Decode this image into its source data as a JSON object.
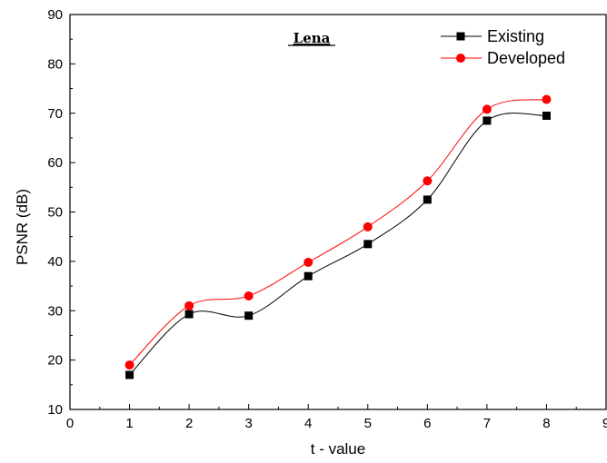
{
  "chart_data": {
    "type": "line",
    "title": "Lena",
    "xlabel": "t - value",
    "ylabel": "PSNR (dB)",
    "xlim": [
      0,
      9
    ],
    "ylim": [
      10,
      90
    ],
    "xticks": [
      "0",
      "1",
      "2",
      "3",
      "4",
      "5",
      "6",
      "7",
      "8",
      "9"
    ],
    "yticks": [
      "10",
      "20",
      "30",
      "40",
      "50",
      "60",
      "70",
      "80",
      "90"
    ],
    "x": [
      1,
      2,
      3,
      4,
      5,
      6,
      7,
      8
    ],
    "series": [
      {
        "name": "Existing",
        "values": [
          17,
          29.3,
          29,
          37,
          43.5,
          52.5,
          68.5,
          69.5
        ],
        "color": "#000000",
        "marker": "square"
      },
      {
        "name": "Developed",
        "values": [
          19,
          31,
          33,
          39.8,
          47,
          56.3,
          70.8,
          72.8
        ],
        "color": "#ff0000",
        "marker": "circle"
      }
    ],
    "grid": false,
    "legend_position": "top-right",
    "line_style": "smooth"
  }
}
